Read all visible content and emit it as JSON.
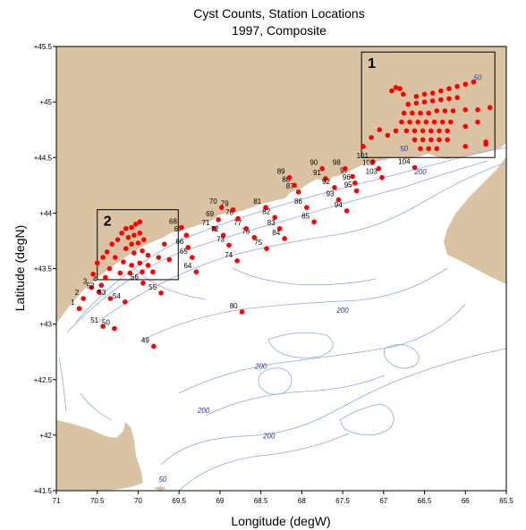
{
  "title": [
    "Cyst Counts, Station Locations",
    "1997, Composite"
  ],
  "xlabel": "Longitude (degW)",
  "ylabel": "Latitude (degN)",
  "colors": {
    "land": "#d9c3a3",
    "contour": "#8fa8e0",
    "station": "#ff0000",
    "box": "#000000"
  },
  "axes": {
    "x": {
      "min": 65.5,
      "max": 71,
      "reversed": true,
      "ticks": [
        71,
        70.5,
        70,
        69.5,
        69,
        68.5,
        68,
        67.5,
        67,
        66.5,
        66,
        65.5
      ],
      "tick_labels": [
        "71",
        "70.5",
        "70",
        "69.5",
        "69",
        "68.5",
        "68",
        "67.5",
        "67",
        "66.5",
        "66",
        "65.5"
      ]
    },
    "y": {
      "min": 41.5,
      "max": 45.5,
      "ticks": [
        41.5,
        42,
        42.5,
        43,
        43.5,
        44,
        44.5,
        45,
        45.5
      ],
      "tick_labels": [
        "+41.5",
        "+42",
        "+42.5",
        "+43",
        "+43.5",
        "+44",
        "+44.5",
        "+45",
        "+45.5"
      ]
    }
  },
  "boxes": [
    {
      "label": "1",
      "lon": [
        65.64,
        67.27
      ],
      "lat": [
        44.5,
        45.45
      ]
    },
    {
      "label": "2",
      "lon": [
        69.51,
        70.5
      ],
      "lat": [
        43.4,
        44.03
      ]
    }
  ],
  "contour_labels": [
    {
      "text": "50",
      "lon": 65.85,
      "lat": 45.2
    },
    {
      "text": "50",
      "lon": 66.75,
      "lat": 44.56
    },
    {
      "text": "200",
      "lon": 66.55,
      "lat": 44.35
    },
    {
      "text": "200",
      "lon": 67.5,
      "lat": 43.1
    },
    {
      "text": "200",
      "lon": 68.5,
      "lat": 42.6
    },
    {
      "text": "200",
      "lon": 69.2,
      "lat": 42.2
    },
    {
      "text": "200",
      "lon": 68.4,
      "lat": 41.97
    },
    {
      "text": "50",
      "lon": 69.7,
      "lat": 41.58
    }
  ],
  "chart_data": {
    "type": "scatter",
    "stations": [
      {
        "id": "1",
        "lon": 70.72,
        "lat": 43.14
      },
      {
        "id": "2",
        "lon": 70.67,
        "lat": 43.23
      },
      {
        "id": "3",
        "lon": 70.57,
        "lat": 43.33
      },
      {
        "id": "4",
        "lon": 70.45,
        "lat": 43.35
      },
      {
        "id": "49",
        "lon": 69.81,
        "lat": 42.8
      },
      {
        "id": "50",
        "lon": 70.29,
        "lat": 42.96
      },
      {
        "id": "51",
        "lon": 70.43,
        "lat": 42.98
      },
      {
        "id": "52",
        "lon": 70.48,
        "lat": 43.29
      },
      {
        "id": "53",
        "lon": 70.34,
        "lat": 43.23
      },
      {
        "id": "54",
        "lon": 70.16,
        "lat": 43.2
      },
      {
        "id": "55",
        "lon": 69.72,
        "lat": 43.28
      },
      {
        "id": "56",
        "lon": 69.94,
        "lat": 43.37
      },
      {
        "id": "64",
        "lon": 69.29,
        "lat": 43.47
      },
      {
        "id": "65",
        "lon": 69.34,
        "lat": 43.6
      },
      {
        "id": "66",
        "lon": 69.39,
        "lat": 43.69
      },
      {
        "id": "67",
        "lon": 69.41,
        "lat": 43.8
      },
      {
        "id": "68",
        "lon": 69.47,
        "lat": 43.87
      },
      {
        "id": "69",
        "lon": 69.02,
        "lat": 43.94
      },
      {
        "id": "70",
        "lon": 68.98,
        "lat": 44.05
      },
      {
        "id": "71",
        "lon": 69.07,
        "lat": 43.86
      },
      {
        "id": "72",
        "lon": 68.96,
        "lat": 43.8
      },
      {
        "id": "73",
        "lon": 68.89,
        "lat": 43.71
      },
      {
        "id": "74",
        "lon": 68.79,
        "lat": 43.57
      },
      {
        "id": "75",
        "lon": 68.43,
        "lat": 43.68
      },
      {
        "id": "76",
        "lon": 68.58,
        "lat": 43.78
      },
      {
        "id": "77",
        "lon": 68.68,
        "lat": 43.86
      },
      {
        "id": "78",
        "lon": 68.78,
        "lat": 43.95
      },
      {
        "id": "79",
        "lon": 68.84,
        "lat": 44.03
      },
      {
        "id": "80",
        "lon": 68.73,
        "lat": 43.11
      },
      {
        "id": "81",
        "lon": 68.44,
        "lat": 44.05
      },
      {
        "id": "82",
        "lon": 68.33,
        "lat": 43.96
      },
      {
        "id": "83",
        "lon": 68.27,
        "lat": 43.86
      },
      {
        "id": "84",
        "lon": 68.21,
        "lat": 43.77
      },
      {
        "id": "85",
        "lon": 67.85,
        "lat": 43.92
      },
      {
        "id": "86",
        "lon": 67.94,
        "lat": 44.05
      },
      {
        "id": "87",
        "lon": 68.04,
        "lat": 44.19
      },
      {
        "id": "88",
        "lon": 68.09,
        "lat": 44.25
      },
      {
        "id": "89",
        "lon": 68.15,
        "lat": 44.32
      },
      {
        "id": "90",
        "lon": 67.75,
        "lat": 44.4
      },
      {
        "id": "91",
        "lon": 67.71,
        "lat": 44.31
      },
      {
        "id": "92",
        "lon": 67.6,
        "lat": 44.23
      },
      {
        "id": "93",
        "lon": 67.55,
        "lat": 44.12
      },
      {
        "id": "94",
        "lon": 67.45,
        "lat": 44.02
      },
      {
        "id": "95",
        "lon": 67.33,
        "lat": 44.2
      },
      {
        "id": "96",
        "lon": 67.35,
        "lat": 44.27
      },
      {
        "id": "97",
        "lon": 67.38,
        "lat": 44.33
      },
      {
        "id": "98",
        "lon": 67.47,
        "lat": 44.4
      },
      {
        "id": "101",
        "lon": 67.13,
        "lat": 44.46
      },
      {
        "id": "102",
        "lon": 67.06,
        "lat": 44.4
      },
      {
        "id": "103",
        "lon": 67.02,
        "lat": 44.32
      },
      {
        "id": "104",
        "lon": 66.62,
        "lat": 44.41
      }
    ],
    "unlabeled_stations": [
      {
        "lon": 70.55,
        "lat": 43.45
      },
      {
        "lon": 70.5,
        "lat": 43.55
      },
      {
        "lon": 70.43,
        "lat": 43.6
      },
      {
        "lon": 70.38,
        "lat": 43.65
      },
      {
        "lon": 70.32,
        "lat": 43.72
      },
      {
        "lon": 70.25,
        "lat": 43.76
      },
      {
        "lon": 70.2,
        "lat": 43.82
      },
      {
        "lon": 70.15,
        "lat": 43.86
      },
      {
        "lon": 70.08,
        "lat": 43.87
      },
      {
        "lon": 70.03,
        "lat": 43.9
      },
      {
        "lon": 69.98,
        "lat": 43.92
      },
      {
        "lon": 70.12,
        "lat": 43.78
      },
      {
        "lon": 70.05,
        "lat": 43.8
      },
      {
        "lon": 69.98,
        "lat": 43.82
      },
      {
        "lon": 70.08,
        "lat": 43.72
      },
      {
        "lon": 70.0,
        "lat": 43.73
      },
      {
        "lon": 69.93,
        "lat": 43.76
      },
      {
        "lon": 70.15,
        "lat": 43.68
      },
      {
        "lon": 70.05,
        "lat": 43.64
      },
      {
        "lon": 69.95,
        "lat": 43.66
      },
      {
        "lon": 69.88,
        "lat": 43.62
      },
      {
        "lon": 70.28,
        "lat": 43.6
      },
      {
        "lon": 70.18,
        "lat": 43.56
      },
      {
        "lon": 70.08,
        "lat": 43.53
      },
      {
        "lon": 69.98,
        "lat": 43.55
      },
      {
        "lon": 69.88,
        "lat": 43.53
      },
      {
        "lon": 70.35,
        "lat": 43.5
      },
      {
        "lon": 70.22,
        "lat": 43.46
      },
      {
        "lon": 70.1,
        "lat": 43.46
      },
      {
        "lon": 69.95,
        "lat": 43.47
      },
      {
        "lon": 69.82,
        "lat": 43.47
      },
      {
        "lon": 70.4,
        "lat": 43.42
      },
      {
        "lon": 69.75,
        "lat": 43.6
      },
      {
        "lon": 69.62,
        "lat": 43.58
      },
      {
        "lon": 69.68,
        "lat": 43.72
      },
      {
        "lon": 66.9,
        "lat": 45.1
      },
      {
        "lon": 66.85,
        "lat": 45.13
      },
      {
        "lon": 66.8,
        "lat": 45.12
      },
      {
        "lon": 66.76,
        "lat": 45.07
      },
      {
        "lon": 66.6,
        "lat": 45.05
      },
      {
        "lon": 66.5,
        "lat": 45.07
      },
      {
        "lon": 66.4,
        "lat": 45.08
      },
      {
        "lon": 66.3,
        "lat": 45.1
      },
      {
        "lon": 66.2,
        "lat": 45.12
      },
      {
        "lon": 66.1,
        "lat": 45.14
      },
      {
        "lon": 66.0,
        "lat": 45.16
      },
      {
        "lon": 65.9,
        "lat": 45.18
      },
      {
        "lon": 66.7,
        "lat": 44.98
      },
      {
        "lon": 66.6,
        "lat": 44.99
      },
      {
        "lon": 66.5,
        "lat": 45.0
      },
      {
        "lon": 66.4,
        "lat": 45.01
      },
      {
        "lon": 66.3,
        "lat": 45.02
      },
      {
        "lon": 66.2,
        "lat": 45.03
      },
      {
        "lon": 66.1,
        "lat": 45.04
      },
      {
        "lon": 66.75,
        "lat": 44.9
      },
      {
        "lon": 66.65,
        "lat": 44.9
      },
      {
        "lon": 66.55,
        "lat": 44.9
      },
      {
        "lon": 66.45,
        "lat": 44.9
      },
      {
        "lon": 66.35,
        "lat": 44.92
      },
      {
        "lon": 66.25,
        "lat": 44.92
      },
      {
        "lon": 66.15,
        "lat": 44.92
      },
      {
        "lon": 66.0,
        "lat": 44.93
      },
      {
        "lon": 65.85,
        "lat": 44.93
      },
      {
        "lon": 65.7,
        "lat": 44.95
      },
      {
        "lon": 66.78,
        "lat": 44.82
      },
      {
        "lon": 66.68,
        "lat": 44.82
      },
      {
        "lon": 66.58,
        "lat": 44.82
      },
      {
        "lon": 66.48,
        "lat": 44.82
      },
      {
        "lon": 66.38,
        "lat": 44.82
      },
      {
        "lon": 66.28,
        "lat": 44.82
      },
      {
        "lon": 66.18,
        "lat": 44.82
      },
      {
        "lon": 66.85,
        "lat": 44.74
      },
      {
        "lon": 66.72,
        "lat": 44.74
      },
      {
        "lon": 66.62,
        "lat": 44.74
      },
      {
        "lon": 66.52,
        "lat": 44.74
      },
      {
        "lon": 66.42,
        "lat": 44.74
      },
      {
        "lon": 66.32,
        "lat": 44.74
      },
      {
        "lon": 66.22,
        "lat": 44.74
      },
      {
        "lon": 66.0,
        "lat": 44.78
      },
      {
        "lon": 65.85,
        "lat": 44.82
      },
      {
        "lon": 66.95,
        "lat": 44.7
      },
      {
        "lon": 66.62,
        "lat": 44.66
      },
      {
        "lon": 66.52,
        "lat": 44.66
      },
      {
        "lon": 66.42,
        "lat": 44.66
      },
      {
        "lon": 66.32,
        "lat": 44.66
      },
      {
        "lon": 66.22,
        "lat": 44.66
      },
      {
        "lon": 66.55,
        "lat": 44.58
      },
      {
        "lon": 66.45,
        "lat": 44.58
      },
      {
        "lon": 66.35,
        "lat": 44.58
      },
      {
        "lon": 65.75,
        "lat": 44.62
      },
      {
        "lon": 65.75,
        "lat": 44.64
      },
      {
        "lon": 66.0,
        "lat": 44.6
      },
      {
        "lon": 67.15,
        "lat": 44.68
      },
      {
        "lon": 67.25,
        "lat": 44.6
      },
      {
        "lon": 67.05,
        "lat": 44.75
      }
    ]
  }
}
